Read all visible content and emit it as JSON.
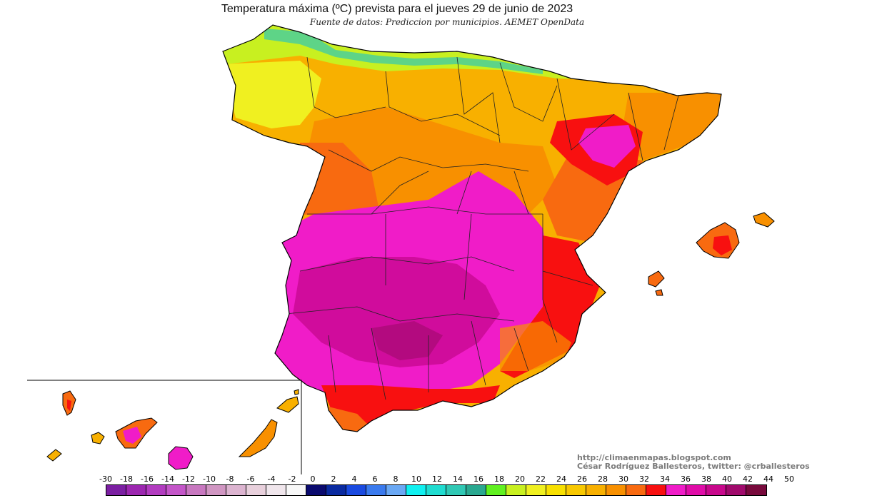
{
  "title": "Temperatura máxima (ºC) prevista para el jueves 29 de junio de 2023",
  "subtitle": "Fuente de datos: Prediccion por municipios. AEMET OpenData",
  "credits": {
    "website": "http://climaenmapas.blogspot.com",
    "author": "César Rodríguez Ballesteros, twitter: @crballesteros"
  },
  "legend": {
    "labels": [
      "-30",
      "-18",
      "-16",
      "-14",
      "-12",
      "-10",
      "-8",
      "-6",
      "-4",
      "-2",
      "0",
      "2",
      "4",
      "6",
      "8",
      "10",
      "12",
      "14",
      "16",
      "18",
      "20",
      "22",
      "24",
      "26",
      "28",
      "30",
      "32",
      "34",
      "36",
      "38",
      "40",
      "42",
      "44",
      "50"
    ],
    "colors": [
      "#7b1fa2",
      "#9c27b0",
      "#b23cc0",
      "#c456c9",
      "#c878c0",
      "#d096c2",
      "#dcb4d0",
      "#e8d0dc",
      "#f0e6ec",
      "#f8f8f8",
      "#0a0a6e",
      "#0a2aa0",
      "#1a4ae0",
      "#3a7aee",
      "#6aa8f4",
      "#10f0f0",
      "#20dcd0",
      "#30c8b4",
      "#2aa890",
      "#60f020",
      "#c8f020",
      "#f0f020",
      "#f8e000",
      "#f8c800",
      "#f8b000",
      "#f89000",
      "#f86a10",
      "#f81010",
      "#f01cc8",
      "#e00ca8",
      "#c8088c",
      "#a00a6c",
      "#780a3c"
    ]
  },
  "regions": {
    "mainland": "España peninsular",
    "balearic": "Islas Baleares",
    "canary": "Islas Canarias"
  }
}
